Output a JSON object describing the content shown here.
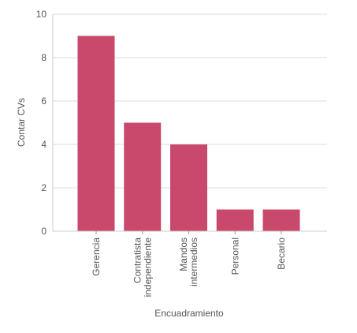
{
  "chart_data": {
    "type": "bar",
    "categories": [
      [
        "Gerencia"
      ],
      [
        "Contratista",
        "independiente"
      ],
      [
        "Mandos",
        "intermedios"
      ],
      [
        "Personal"
      ],
      [
        "Becario"
      ]
    ],
    "values": [
      9,
      5,
      4,
      1,
      1
    ],
    "title": "",
    "xlabel": "Encuadramiento",
    "ylabel": "Contar CVs",
    "ylim": [
      0,
      10
    ],
    "yticks": [
      0,
      2,
      4,
      6,
      8,
      10
    ],
    "grid": "horizontal",
    "bar_color": "#c8496b",
    "legend": "none"
  }
}
